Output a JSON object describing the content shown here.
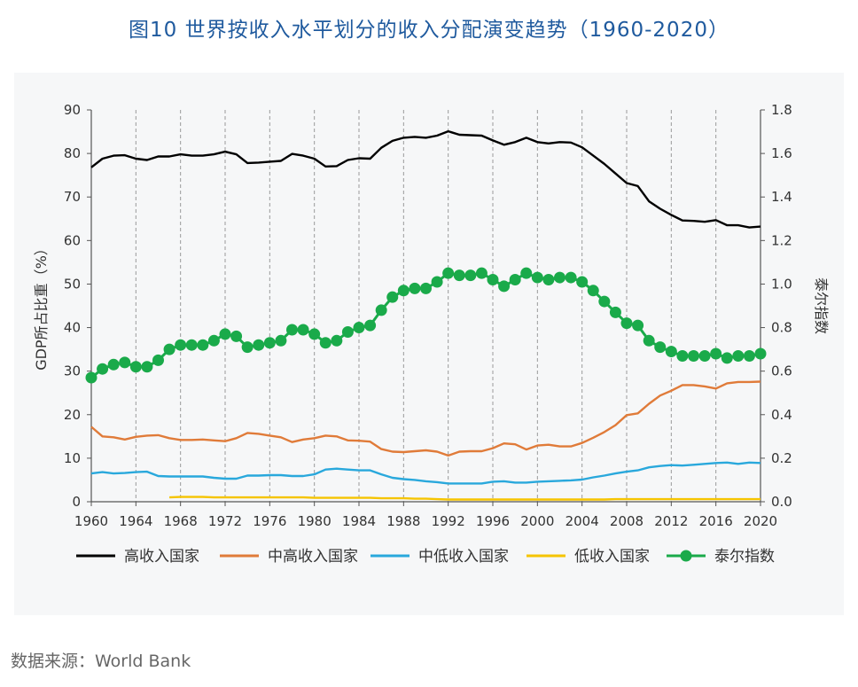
{
  "title": "图10  世界按收入水平划分的收入分配演变趋势（1960-2020）",
  "source": "数据来源：World Bank",
  "chart_data": {
    "type": "line",
    "xlim": [
      1960,
      2020
    ],
    "x_ticks": [
      1960,
      1964,
      1968,
      1972,
      1976,
      1980,
      1984,
      1988,
      1992,
      1996,
      2000,
      2004,
      2008,
      2012,
      2016,
      2020
    ],
    "x_tick_labels": [
      "1960",
      "1964",
      "1968",
      "1972",
      "1976",
      "1980",
      "1984",
      "1988",
      "1992",
      "1996",
      "2000",
      "2004",
      "2008",
      "2012",
      "2016",
      "2020"
    ],
    "ylabel": "GDP所占比重（%）",
    "ylim": [
      0,
      90
    ],
    "y_ticks": [
      0,
      10,
      20,
      30,
      40,
      50,
      60,
      70,
      80,
      90
    ],
    "y_tick_labels": [
      "0",
      "10",
      "20",
      "30",
      "40",
      "50",
      "60",
      "70",
      "80",
      "90"
    ],
    "y2label": "泰尔指数",
    "y2lim": [
      0,
      1.8
    ],
    "y2_ticks": [
      0,
      0.2,
      0.4,
      0.6,
      0.8,
      1.0,
      1.2,
      1.4,
      1.6,
      1.8
    ],
    "y2_tick_labels": [
      "0.0",
      "0.2",
      "0.4",
      "0.6",
      "0.8",
      "1.0",
      "1.2",
      "1.4",
      "1.6",
      "1.8"
    ],
    "grid": "vertical",
    "legend_position": "bottom",
    "series": [
      {
        "name": "高收入国家",
        "axis": "left",
        "color": "#000000",
        "marker": "none",
        "x": [
          1960,
          1961,
          1962,
          1963,
          1964,
          1965,
          1966,
          1967,
          1968,
          1969,
          1970,
          1971,
          1972,
          1973,
          1974,
          1975,
          1976,
          1977,
          1978,
          1979,
          1980,
          1981,
          1982,
          1983,
          1984,
          1985,
          1986,
          1987,
          1988,
          1989,
          1990,
          1991,
          1992,
          1993,
          1994,
          1995,
          1996,
          1997,
          1998,
          1999,
          2000,
          2001,
          2002,
          2003,
          2004,
          2005,
          2006,
          2007,
          2008,
          2009,
          2010,
          2011,
          2012,
          2013,
          2014,
          2015,
          2016,
          2017,
          2018,
          2019,
          2020
        ],
        "values": [
          76.8,
          78.8,
          79.5,
          79.6,
          78.8,
          78.5,
          79.3,
          79.3,
          79.8,
          79.5,
          79.5,
          79.8,
          80.4,
          79.8,
          77.8,
          77.9,
          78.1,
          78.3,
          79.9,
          79.5,
          78.8,
          77.0,
          77.1,
          78.5,
          78.9,
          78.8,
          81.3,
          82.9,
          83.6,
          83.8,
          83.6,
          84.1,
          85.1,
          84.3,
          84.2,
          84.1,
          83.0,
          82.0,
          82.6,
          83.6,
          82.6,
          82.3,
          82.6,
          82.5,
          81.4,
          79.5,
          77.6,
          75.4,
          73.2,
          72.5,
          69.0,
          67.3,
          65.9,
          64.6,
          64.5,
          64.3,
          64.7,
          63.5,
          63.5,
          63.0,
          63.2
        ]
      },
      {
        "name": "中高收入国家",
        "axis": "left",
        "color": "#e07b39",
        "marker": "none",
        "x": [
          1960,
          1961,
          1962,
          1963,
          1964,
          1965,
          1966,
          1967,
          1968,
          1969,
          1970,
          1971,
          1972,
          1973,
          1974,
          1975,
          1976,
          1977,
          1978,
          1979,
          1980,
          1981,
          1982,
          1983,
          1984,
          1985,
          1986,
          1987,
          1988,
          1989,
          1990,
          1991,
          1992,
          1993,
          1994,
          1995,
          1996,
          1997,
          1998,
          1999,
          2000,
          2001,
          2002,
          2003,
          2004,
          2005,
          2006,
          2007,
          2008,
          2009,
          2010,
          2011,
          2012,
          2013,
          2014,
          2015,
          2016,
          2017,
          2018,
          2019,
          2020
        ],
        "values": [
          17.2,
          15.0,
          14.8,
          14.3,
          14.9,
          15.2,
          15.3,
          14.6,
          14.2,
          14.2,
          14.3,
          14.1,
          13.9,
          14.6,
          15.8,
          15.6,
          15.2,
          14.8,
          13.7,
          14.3,
          14.6,
          15.2,
          15.0,
          14.1,
          14.0,
          13.8,
          12.1,
          11.5,
          11.4,
          11.6,
          11.8,
          11.5,
          10.6,
          11.5,
          11.6,
          11.6,
          12.3,
          13.4,
          13.2,
          12.0,
          12.9,
          13.1,
          12.7,
          12.7,
          13.5,
          14.7,
          16.0,
          17.6,
          19.9,
          20.3,
          22.5,
          24.4,
          25.5,
          26.8,
          26.8,
          26.5,
          26.0,
          27.2,
          27.5,
          27.5,
          27.6
        ]
      },
      {
        "name": "中低收入国家",
        "axis": "left",
        "color": "#29a8dc",
        "marker": "none",
        "x": [
          1960,
          1961,
          1962,
          1963,
          1964,
          1965,
          1966,
          1967,
          1968,
          1969,
          1970,
          1971,
          1972,
          1973,
          1974,
          1975,
          1976,
          1977,
          1978,
          1979,
          1980,
          1981,
          1982,
          1983,
          1984,
          1985,
          1986,
          1987,
          1988,
          1989,
          1990,
          1991,
          1992,
          1993,
          1994,
          1995,
          1996,
          1997,
          1998,
          1999,
          2000,
          2001,
          2002,
          2003,
          2004,
          2005,
          2006,
          2007,
          2008,
          2009,
          2010,
          2011,
          2012,
          2013,
          2014,
          2015,
          2016,
          2017,
          2018,
          2019,
          2020
        ],
        "values": [
          6.5,
          6.8,
          6.5,
          6.6,
          6.8,
          6.9,
          5.9,
          5.8,
          5.8,
          5.8,
          5.8,
          5.5,
          5.3,
          5.3,
          6.0,
          6.0,
          6.1,
          6.1,
          5.9,
          5.9,
          6.3,
          7.4,
          7.6,
          7.4,
          7.2,
          7.2,
          6.3,
          5.5,
          5.2,
          5.0,
          4.7,
          4.5,
          4.2,
          4.2,
          4.2,
          4.2,
          4.6,
          4.7,
          4.4,
          4.4,
          4.6,
          4.7,
          4.8,
          4.9,
          5.1,
          5.6,
          6.0,
          6.5,
          6.9,
          7.2,
          7.9,
          8.2,
          8.4,
          8.3,
          8.5,
          8.7,
          8.9,
          9.0,
          8.7,
          9.0,
          8.9
        ]
      },
      {
        "name": "低收入国家",
        "axis": "left",
        "color": "#f5c400",
        "marker": "none",
        "x": [
          1967,
          1968,
          1969,
          1970,
          1971,
          1972,
          1973,
          1974,
          1975,
          1976,
          1977,
          1978,
          1979,
          1980,
          1981,
          1982,
          1983,
          1984,
          1985,
          1986,
          1987,
          1988,
          1989,
          1990,
          1991,
          1992,
          1993,
          1994,
          1995,
          1996,
          1997,
          1998,
          1999,
          2000,
          2001,
          2002,
          2003,
          2004,
          2005,
          2006,
          2007,
          2008,
          2009,
          2010,
          2011,
          2012,
          2013,
          2014,
          2015,
          2016,
          2017,
          2018,
          2019,
          2020
        ],
        "values": [
          1.0,
          1.1,
          1.1,
          1.1,
          1.0,
          1.0,
          1.0,
          1.0,
          1.0,
          1.0,
          1.0,
          1.0,
          1.0,
          0.9,
          0.9,
          0.9,
          0.9,
          0.9,
          0.9,
          0.8,
          0.8,
          0.8,
          0.7,
          0.7,
          0.6,
          0.5,
          0.5,
          0.5,
          0.5,
          0.5,
          0.5,
          0.5,
          0.5,
          0.5,
          0.5,
          0.5,
          0.5,
          0.5,
          0.5,
          0.5,
          0.6,
          0.6,
          0.6,
          0.6,
          0.6,
          0.6,
          0.6,
          0.6,
          0.6,
          0.6,
          0.6,
          0.6,
          0.6,
          0.6
        ]
      },
      {
        "name": "泰尔指数",
        "axis": "right",
        "color": "#1aaa4a",
        "marker": "circle",
        "x": [
          1960,
          1961,
          1962,
          1963,
          1964,
          1965,
          1966,
          1967,
          1968,
          1969,
          1970,
          1971,
          1972,
          1973,
          1974,
          1975,
          1976,
          1977,
          1978,
          1979,
          1980,
          1981,
          1982,
          1983,
          1984,
          1985,
          1986,
          1987,
          1988,
          1989,
          1990,
          1991,
          1992,
          1993,
          1994,
          1995,
          1996,
          1997,
          1998,
          1999,
          2000,
          2001,
          2002,
          2003,
          2004,
          2005,
          2006,
          2007,
          2008,
          2009,
          2010,
          2011,
          2012,
          2013,
          2014,
          2015,
          2016,
          2017,
          2018,
          2019,
          2020
        ],
        "values": [
          0.57,
          0.61,
          0.63,
          0.64,
          0.62,
          0.62,
          0.65,
          0.7,
          0.72,
          0.72,
          0.72,
          0.74,
          0.77,
          0.76,
          0.71,
          0.72,
          0.73,
          0.74,
          0.79,
          0.79,
          0.77,
          0.73,
          0.74,
          0.78,
          0.8,
          0.81,
          0.88,
          0.94,
          0.97,
          0.98,
          0.98,
          1.01,
          1.05,
          1.04,
          1.04,
          1.05,
          1.02,
          0.99,
          1.02,
          1.05,
          1.03,
          1.02,
          1.03,
          1.03,
          1.01,
          0.97,
          0.92,
          0.87,
          0.82,
          0.81,
          0.74,
          0.71,
          0.69,
          0.67,
          0.67,
          0.67,
          0.68,
          0.66,
          0.67,
          0.67,
          0.68
        ]
      }
    ]
  }
}
